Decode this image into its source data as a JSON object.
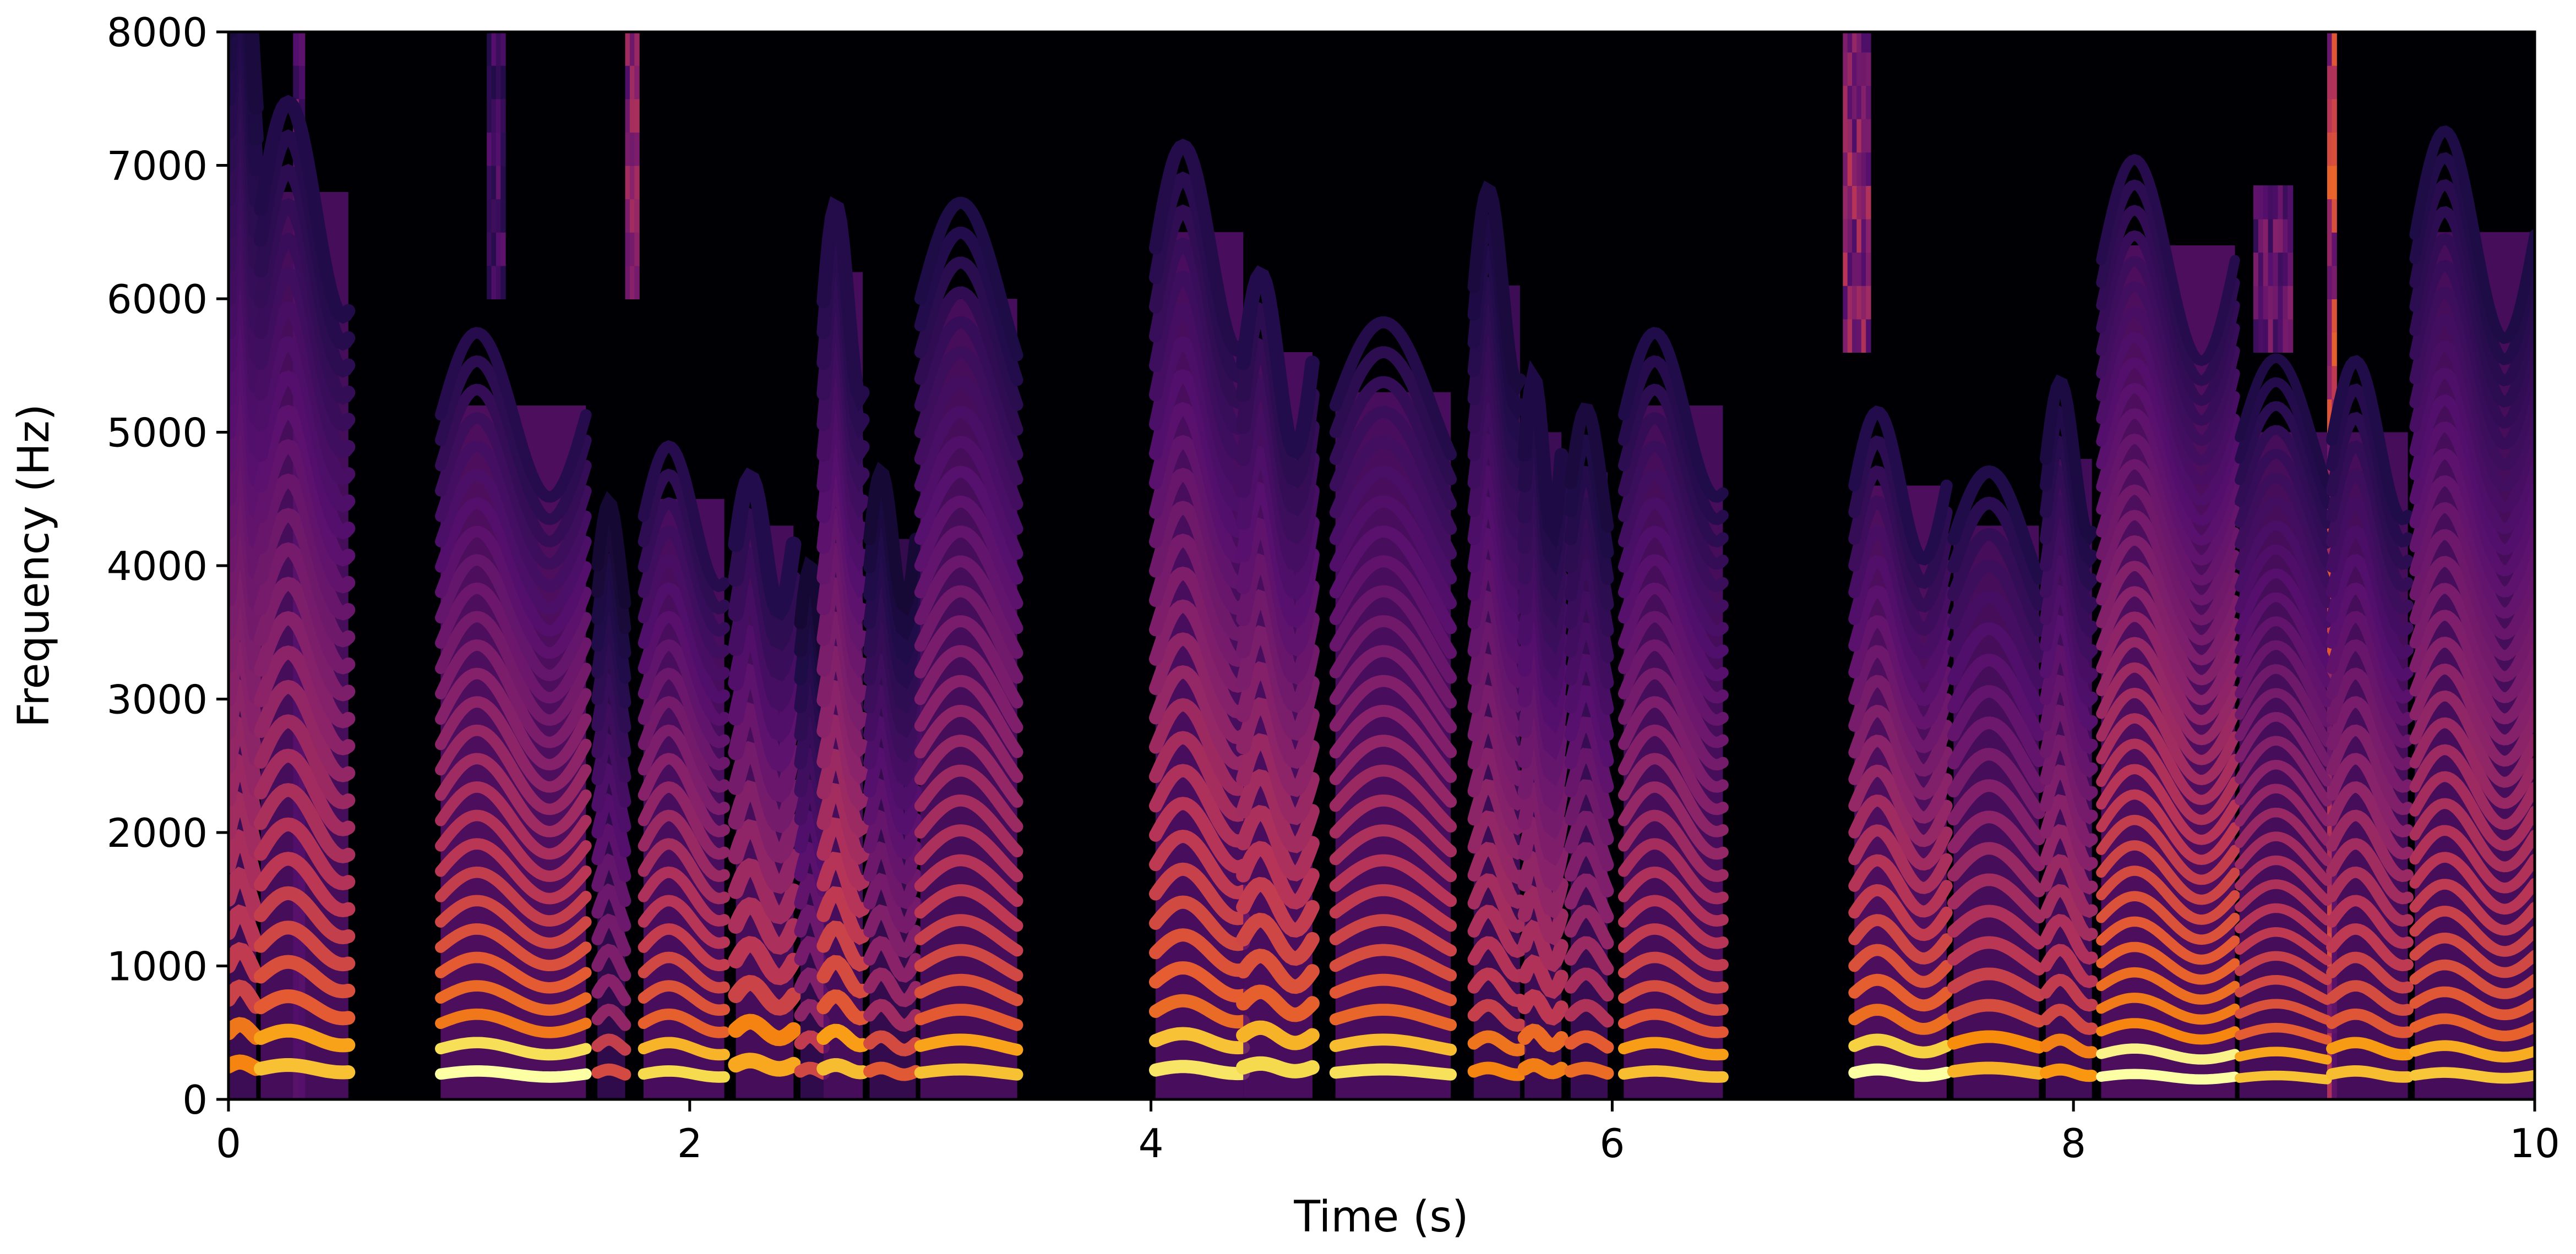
{
  "chart_data": {
    "type": "heatmap",
    "subtype": "spectrogram",
    "colormap": "inferno",
    "xlabel": "Time (s)",
    "ylabel": "Frequency (Hz)",
    "xlim": [
      0,
      10
    ],
    "ylim": [
      0,
      8000
    ],
    "xticks": [
      0,
      2,
      4,
      6,
      8,
      10
    ],
    "yticks": [
      0,
      1000,
      2000,
      3000,
      4000,
      5000,
      6000,
      7000,
      8000
    ],
    "grid": false,
    "voiced_segments": [
      {
        "start": 0.0,
        "end": 0.12,
        "f0": 250,
        "top": 8000,
        "intensity": 0.75
      },
      {
        "start": 0.14,
        "end": 0.52,
        "f0": 230,
        "top": 6800,
        "intensity": 0.85
      },
      {
        "start": 0.92,
        "end": 1.55,
        "f0": 190,
        "top": 5200,
        "intensity": 0.95
      },
      {
        "start": 1.6,
        "end": 1.72,
        "f0": 200,
        "top": 4000,
        "intensity": 0.6
      },
      {
        "start": 1.8,
        "end": 2.15,
        "f0": 190,
        "top": 4500,
        "intensity": 0.9
      },
      {
        "start": 2.2,
        "end": 2.45,
        "f0": 260,
        "top": 4300,
        "intensity": 0.85
      },
      {
        "start": 2.48,
        "end": 2.58,
        "f0": 210,
        "top": 3600,
        "intensity": 0.6
      },
      {
        "start": 2.58,
        "end": 2.75,
        "f0": 230,
        "top": 6200,
        "intensity": 0.85
      },
      {
        "start": 2.78,
        "end": 2.98,
        "f0": 210,
        "top": 4200,
        "intensity": 0.65
      },
      {
        "start": 3.0,
        "end": 3.42,
        "f0": 200,
        "top": 6000,
        "intensity": 0.85
      },
      {
        "start": 4.02,
        "end": 4.4,
        "f0": 220,
        "top": 6500,
        "intensity": 0.9
      },
      {
        "start": 4.4,
        "end": 4.7,
        "f0": 240,
        "top": 5600,
        "intensity": 0.9
      },
      {
        "start": 4.8,
        "end": 5.3,
        "f0": 200,
        "top": 5300,
        "intensity": 0.9
      },
      {
        "start": 5.4,
        "end": 5.6,
        "f0": 210,
        "top": 6100,
        "intensity": 0.75
      },
      {
        "start": 5.62,
        "end": 5.78,
        "f0": 230,
        "top": 5000,
        "intensity": 0.75
      },
      {
        "start": 5.82,
        "end": 5.98,
        "f0": 210,
        "top": 4700,
        "intensity": 0.7
      },
      {
        "start": 6.05,
        "end": 6.48,
        "f0": 190,
        "top": 5200,
        "intensity": 0.85
      },
      {
        "start": 7.05,
        "end": 7.45,
        "f0": 200,
        "top": 4600,
        "intensity": 0.95
      },
      {
        "start": 7.48,
        "end": 7.85,
        "f0": 210,
        "top": 4300,
        "intensity": 0.85
      },
      {
        "start": 7.88,
        "end": 8.08,
        "f0": 200,
        "top": 4800,
        "intensity": 0.8
      },
      {
        "start": 8.12,
        "end": 8.7,
        "f0": 170,
        "top": 6400,
        "intensity": 0.95
      },
      {
        "start": 8.72,
        "end": 9.1,
        "f0": 160,
        "top": 5000,
        "intensity": 0.85
      },
      {
        "start": 9.12,
        "end": 9.45,
        "f0": 190,
        "top": 5000,
        "intensity": 0.85
      },
      {
        "start": 9.48,
        "end": 10.0,
        "f0": 180,
        "top": 6500,
        "intensity": 0.85
      }
    ],
    "fricative_segments": [
      {
        "start": 0.0,
        "end": 0.05,
        "low": 3000,
        "high": 8000,
        "intensity": 0.7
      },
      {
        "start": 0.28,
        "end": 0.33,
        "low": 0,
        "high": 8000,
        "intensity": 0.45
      },
      {
        "start": 1.12,
        "end": 1.2,
        "low": 6000,
        "high": 8000,
        "intensity": 0.35
      },
      {
        "start": 1.72,
        "end": 1.78,
        "low": 6000,
        "high": 8000,
        "intensity": 0.55
      },
      {
        "start": 7.0,
        "end": 7.12,
        "low": 5600,
        "high": 8000,
        "intensity": 0.6
      },
      {
        "start": 8.78,
        "end": 8.95,
        "low": 5600,
        "high": 6800,
        "intensity": 0.45
      },
      {
        "start": 9.1,
        "end": 9.14,
        "low": 0,
        "high": 8000,
        "intensity": 0.75
      }
    ]
  }
}
